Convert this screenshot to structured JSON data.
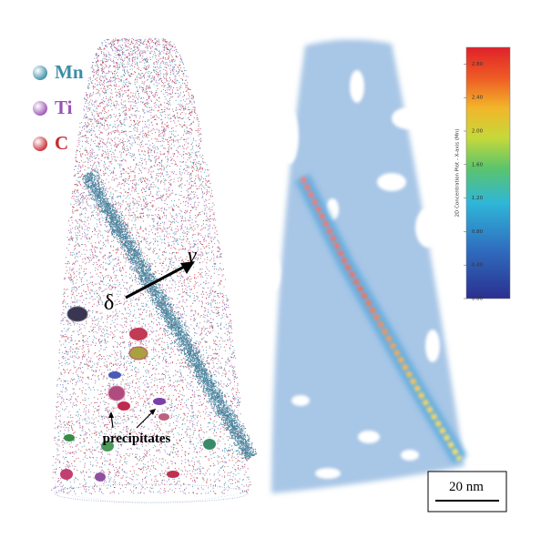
{
  "legend": [
    {
      "label": "Mn",
      "color": "#3a8ea6"
    },
    {
      "label": "Ti",
      "color": "#9a52b3"
    },
    {
      "label": "C",
      "color": "#c62a33"
    }
  ],
  "annotations": {
    "delta": "δ",
    "gamma": "γ",
    "precipitates": "precipitates"
  },
  "colorbar": {
    "label": "2D Concentration Plot - X-axis (Mn)",
    "range": [
      0,
      3.0
    ],
    "ticks": [
      {
        "value": 0,
        "label": "0.00"
      },
      {
        "value": 0.4,
        "label": "0.40"
      },
      {
        "value": 0.8,
        "label": "0.80"
      },
      {
        "value": 1.2,
        "label": "1.20"
      },
      {
        "value": 1.6,
        "label": "1.60"
      },
      {
        "value": 2.0,
        "label": "2.00"
      },
      {
        "value": 2.4,
        "label": "2.40"
      },
      {
        "value": 2.8,
        "label": "2.80"
      }
    ]
  },
  "scale_bar": "20 nm"
}
